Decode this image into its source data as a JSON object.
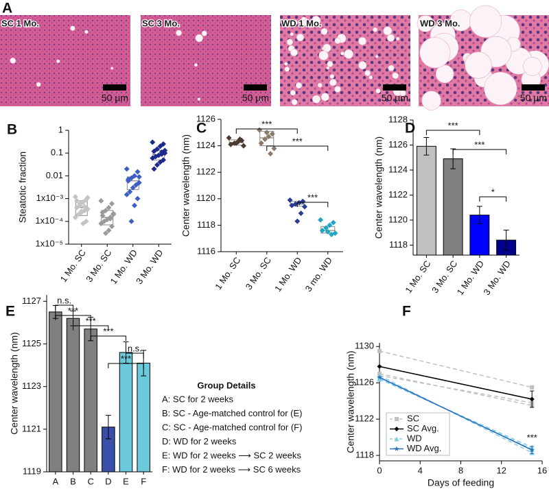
{
  "histology": {
    "panel": "A",
    "images": [
      {
        "label": "SC 1 Mo.",
        "scale_bar": "50 µm"
      },
      {
        "label": "SC 3 Mo.",
        "scale_bar": "50 µm"
      },
      {
        "label": "WD 1 Mo.",
        "scale_bar": "50 µm"
      },
      {
        "label": "WD 3 Mo.",
        "scale_bar": "50 µm"
      }
    ]
  },
  "chart_data": [
    {
      "panel": "B",
      "type": "strip",
      "ylabel": "Steatotic fraction",
      "log_y": true,
      "ylim": [
        1e-05,
        1
      ],
      "yticks": [
        {
          "value": 1e-05,
          "label": "1x10⁻⁵"
        },
        {
          "value": 0.0001,
          "label": "1x10⁻⁴"
        },
        {
          "value": 0.001,
          "label": "1x10⁻³"
        },
        0.01,
        0.1,
        1
      ],
      "categories": [
        "1 Mo. SC",
        "3 Mo. SC",
        "1 Mo. WD",
        "3 Mo. WD"
      ],
      "series": [
        {
          "color": "#c4c4c4",
          "values": [
            0.0012,
            0.0009,
            0.0007,
            0.0005,
            0.0004,
            0.00035,
            0.0003,
            0.00025,
            0.0002,
            0.00015,
            0.0001,
            8e-05,
            0.0006,
            0.0008,
            0.0011,
            0.00045,
            0.00028
          ]
        },
        {
          "color": "#9a9a9a",
          "values": [
            0.0008,
            0.0006,
            0.0004,
            0.0003,
            0.00025,
            0.0002,
            0.00015,
            0.00012,
            0.0001,
            8e-05,
            6e-05,
            4e-05,
            3e-05,
            0.00018,
            0.00022,
            0.00013
          ]
        },
        {
          "color": "#3d5fc4",
          "values": [
            0.02,
            0.015,
            0.01,
            0.008,
            0.006,
            0.005,
            0.004,
            0.003,
            0.002,
            0.0015,
            0.001,
            0.0005,
            0.0001,
            0.007,
            0.009
          ]
        },
        {
          "color": "#1c2a8c",
          "values": [
            0.3,
            0.25,
            0.2,
            0.15,
            0.12,
            0.1,
            0.09,
            0.08,
            0.07,
            0.06,
            0.05,
            0.04,
            0.03,
            0.02,
            0.13,
            0.11
          ]
        }
      ],
      "boxes": [
        {
          "q1": 0.00018,
          "median": 0.0004,
          "q3": 0.0008
        },
        {
          "q1": 7e-05,
          "median": 0.00015,
          "q3": 0.0003
        },
        {
          "q1": 0.0025,
          "median": 0.006,
          "q3": 0.009
        },
        {
          "q1": 0.05,
          "median": 0.085,
          "q3": 0.13
        }
      ]
    },
    {
      "panel": "C",
      "type": "strip",
      "ylabel": "Center wavelength (nm)",
      "ylim": [
        1116,
        1126
      ],
      "yticks": [
        1116,
        1118,
        1120,
        1122,
        1124,
        1126
      ],
      "categories": [
        "1 Mo. SC",
        "3 Mo. SC",
        "1 Mo. WD",
        "3 mo. WD"
      ],
      "series": [
        {
          "color": "#4a3a30",
          "values": [
            1124.6,
            1124.4,
            1124.3,
            1124.2,
            1124.1,
            1124.0,
            1124.5,
            1124.2
          ]
        },
        {
          "color": "#8a7a6a",
          "values": [
            1125.2,
            1124.9,
            1124.7,
            1124.5,
            1124.2,
            1123.8,
            1123.4,
            1125.0
          ]
        },
        {
          "color": "#2a3d8f",
          "values": [
            1119.9,
            1119.8,
            1119.7,
            1119.6,
            1119.5,
            1119.4,
            1118.9,
            1118.3
          ]
        },
        {
          "color": "#22a6c2",
          "values": [
            1118.4,
            1118.2,
            1118.0,
            1117.8,
            1117.6,
            1117.4,
            1117.3,
            1117.5
          ]
        }
      ],
      "boxes": [
        {
          "q1": 1124.05,
          "median": 1124.25,
          "q3": 1124.45
        },
        {
          "q1": 1124.0,
          "median": 1124.6,
          "q3": 1125.1
        },
        {
          "q1": 1119.45,
          "median": 1119.6,
          "q3": 1119.8
        },
        {
          "q1": 1117.4,
          "median": 1117.6,
          "q3": 1117.9
        }
      ],
      "significance": [
        "***",
        "***",
        "***"
      ]
    },
    {
      "panel": "D",
      "type": "bar",
      "ylabel": "Center wavelength (nm)",
      "ylim": [
        1117.2,
        1128
      ],
      "yticks": [
        1118,
        1120,
        1122,
        1124,
        1126,
        1128
      ],
      "categories": [
        "1 Mo. SC",
        "3 Mo. SC",
        "1 Mo. WD",
        "3 Mo. WD"
      ],
      "values": [
        1125.9,
        1124.9,
        1120.4,
        1118.4
      ],
      "errors": [
        0.7,
        0.8,
        0.7,
        0.8
      ],
      "colors": [
        "#c0c0c0",
        "#808080",
        "#0000ff",
        "#00008b"
      ],
      "significance": [
        "***",
        "***",
        "*"
      ]
    },
    {
      "panel": "E",
      "type": "bar",
      "ylabel": "Center wavelength (nm)",
      "ylim": [
        1119,
        1127.3
      ],
      "yticks": [
        1119,
        1121,
        1123,
        1125,
        1127
      ],
      "categories": [
        "A",
        "B",
        "C",
        "D",
        "E",
        "F"
      ],
      "values": [
        1126.5,
        1126.2,
        1125.7,
        1121.1,
        1124.6,
        1124.1
      ],
      "errors": [
        0.3,
        0.35,
        0.55,
        0.55,
        0.5,
        0.6
      ],
      "colors": [
        "#808080",
        "#808080",
        "#808080",
        "#3a4fa8",
        "#6cc9dc",
        "#6cc9dc"
      ],
      "significance": [
        "n.s.",
        "***",
        "***",
        "***",
        "n.s.",
        "***"
      ],
      "legend_title": "Group Details",
      "group_details": [
        "A: SC for 2 weeks",
        "B: SC - Age-matched control for (E)",
        "C: SC - Age-matched control for (F)",
        "D: WD for 2 weeks",
        "E: WD for 2 weeks ⟶ SC 2 weeks",
        "F: WD for 2 weeks ⟶ SC 6 weeks"
      ]
    },
    {
      "panel": "F",
      "type": "line",
      "ylabel": "Center wavelength (nm)",
      "xlabel": "Days of feeding",
      "x": [
        0,
        15
      ],
      "xlim": [
        0,
        16
      ],
      "xticks": [
        0,
        4,
        8,
        12,
        16
      ],
      "ylim": [
        1117.4,
        1130.4
      ],
      "yticks": [
        1118,
        1122,
        1126,
        1130
      ],
      "legend": "lower left",
      "annotation": "***",
      "series": [
        {
          "name": "SC",
          "color": "#c0c0c0",
          "dashed": true,
          "marker": "square",
          "replicates": [
            [
              1129.5,
              1125.5
            ],
            [
              1127.0,
              1123.5
            ],
            [
              1126.8,
              1123.8
            ]
          ]
        },
        {
          "name": "SC Avg.",
          "color": "#000000",
          "marker": "diamond",
          "values": [
            1127.8,
            1124.2
          ],
          "errors": [
            null,
            0.9
          ]
        },
        {
          "name": "WD",
          "color": "#7fd0e6",
          "dashed": true,
          "marker": "triangle",
          "replicates": [
            [
              1126.8,
              1118.3
            ],
            [
              1126.4,
              1118.9
            ],
            [
              1126.5,
              1118.7
            ]
          ]
        },
        {
          "name": "WD Avg.",
          "color": "#2a6fc0",
          "marker": "star",
          "values": [
            1126.6,
            1118.6
          ],
          "errors": [
            null,
            0.4
          ]
        }
      ]
    }
  ]
}
